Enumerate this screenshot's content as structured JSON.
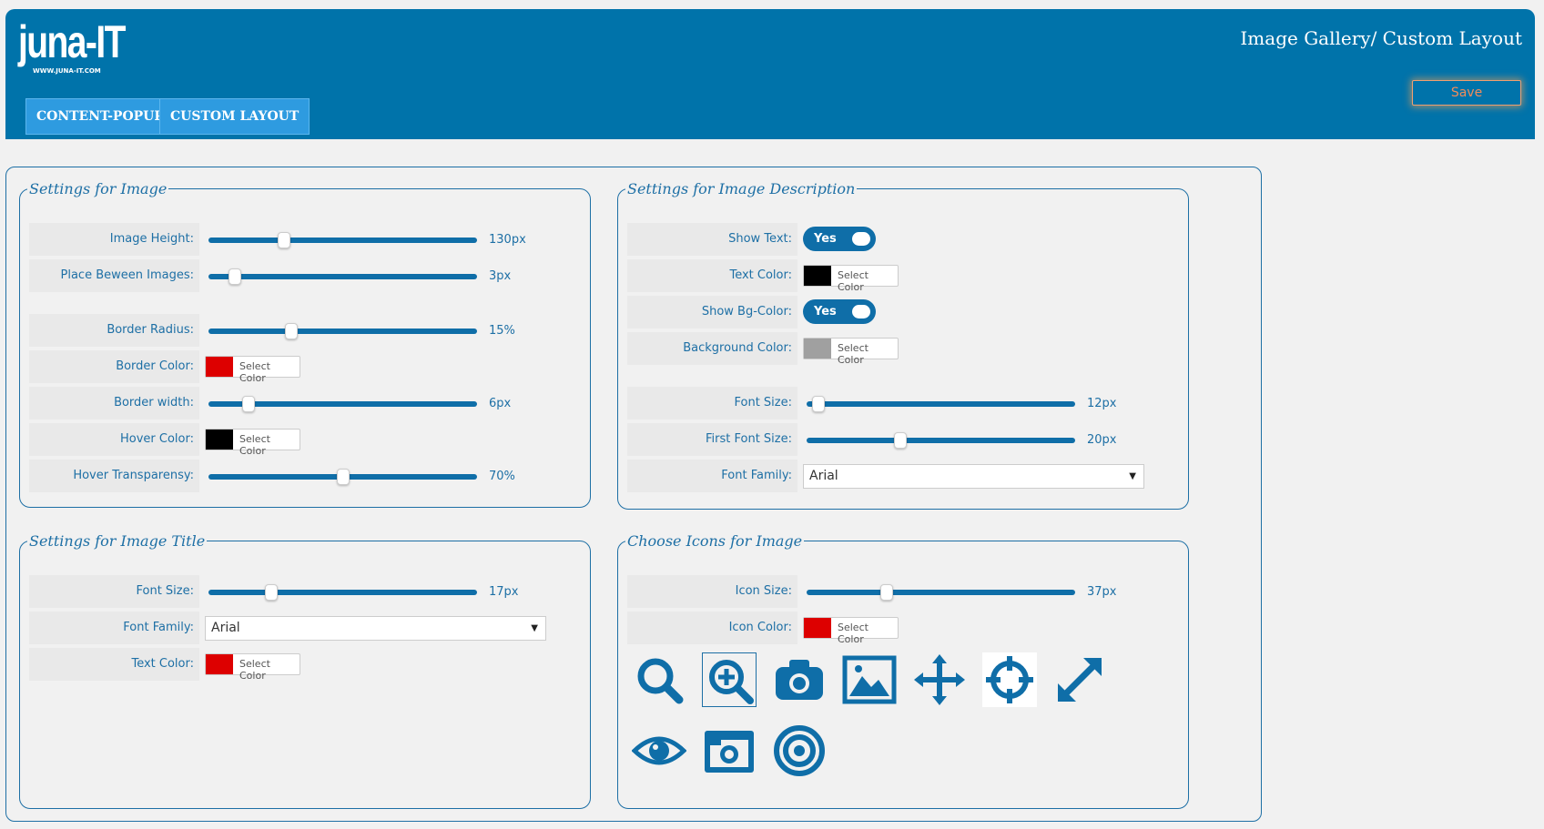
{
  "header": {
    "logo": "juna-IT",
    "logo_sub": "WWW.JUNA-IT.COM",
    "title": "Image Gallery/ Custom Layout",
    "save_label": "Save"
  },
  "tabs": [
    {
      "label": "CONTENT-POPUP"
    },
    {
      "label": "CUSTOM LAYOUT"
    }
  ],
  "image_settings": {
    "legend": "Settings for Image",
    "image_height": {
      "label": "Image Height:",
      "value": "130px",
      "level": 0.27
    },
    "place_between": {
      "label": "Place Beween Images:",
      "value": "3px",
      "level": 0.08
    },
    "border_radius": {
      "label": "Border Radius:",
      "value": "15%",
      "level": 0.3
    },
    "border_color": {
      "label": "Border Color:",
      "color": "#dd0000",
      "button": "Select Color"
    },
    "border_width": {
      "label": "Border width:",
      "value": "6px",
      "level": 0.13
    },
    "hover_color": {
      "label": "Hover Color:",
      "color": "#000000",
      "button": "Select Color"
    },
    "hover_transparency": {
      "label": "Hover Transparensy:",
      "value": "70%",
      "level": 0.5
    }
  },
  "description_settings": {
    "legend": "Settings for Image Description",
    "show_text": {
      "label": "Show Text:",
      "value": "Yes"
    },
    "text_color": {
      "label": "Text Color:",
      "color": "#000000",
      "button": "Select Color"
    },
    "show_bg": {
      "label": "Show Bg-Color:",
      "value": "Yes"
    },
    "bg_color": {
      "label": "Background Color:",
      "color": "#a0a0a0",
      "button": "Select Color"
    },
    "font_size": {
      "label": "Font Size:",
      "value": "12px",
      "level": 0.02
    },
    "first_font_size": {
      "label": "First Font Size:",
      "value": "20px",
      "level": 0.34
    },
    "font_family": {
      "label": "Font Family:",
      "value": "Arial"
    }
  },
  "title_settings": {
    "legend": "Settings for Image Title",
    "font_size": {
      "label": "Font Size:",
      "value": "17px",
      "level": 0.22
    },
    "font_family": {
      "label": "Font Family:",
      "value": "Arial"
    },
    "text_color": {
      "label": "Text Color:",
      "color": "#dd0000",
      "button": "Select Color"
    }
  },
  "icons_settings": {
    "legend": "Choose Icons for Image",
    "icon_size": {
      "label": "Icon Size:",
      "value": "37px",
      "level": 0.29
    },
    "icon_color": {
      "label": "Icon Color:",
      "color": "#dd0000",
      "button": "Select Color"
    },
    "icons": [
      "search-icon",
      "zoom-in-icon",
      "camera-icon",
      "image-icon",
      "move-icon",
      "crosshair-icon",
      "expand-icon",
      "eye-icon",
      "camera-alt-icon",
      "target-icon"
    ],
    "selected_icon": "zoom-in-icon",
    "accent": "#0f6ea8"
  }
}
